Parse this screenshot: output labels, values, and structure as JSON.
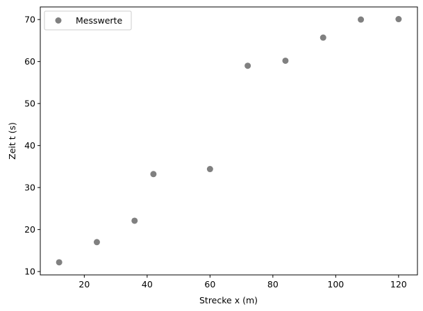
{
  "chart_data": {
    "type": "scatter",
    "title": "",
    "xlabel": "Strecke x (m)",
    "ylabel": "Zeit t (s)",
    "xlim": [
      6,
      126
    ],
    "ylim": [
      9.2,
      73.0
    ],
    "xticks": [
      20,
      40,
      60,
      80,
      100,
      120
    ],
    "yticks": [
      10,
      20,
      30,
      40,
      50,
      60,
      70
    ],
    "grid": false,
    "legend": "top-left",
    "series": [
      {
        "name": "Messwerte",
        "color": "#808080",
        "marker": "circle",
        "x": [
          12,
          24,
          36,
          42,
          60,
          72,
          84,
          96,
          108,
          120
        ],
        "y": [
          12.2,
          17.0,
          22.1,
          33.2,
          34.4,
          59.0,
          60.2,
          65.7,
          70.0,
          70.1
        ]
      }
    ]
  }
}
